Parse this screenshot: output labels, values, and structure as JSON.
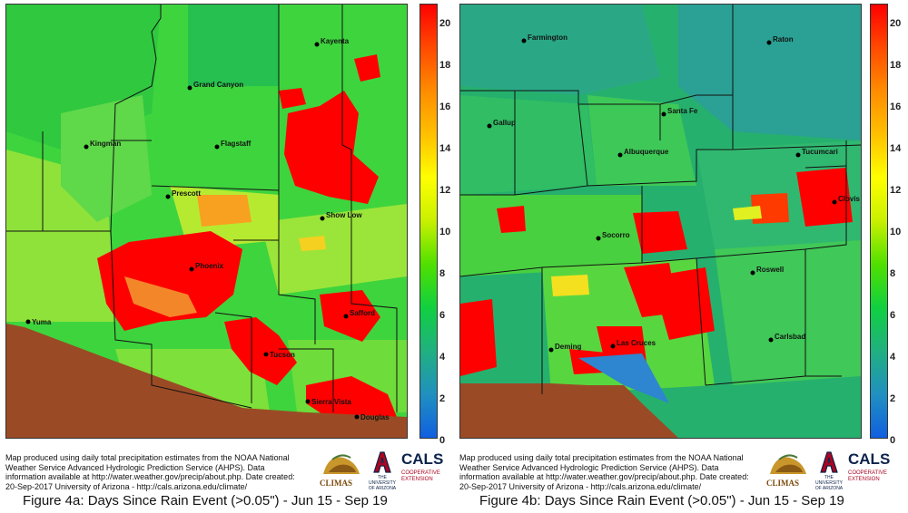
{
  "colorbar": {
    "ticks": [
      "20",
      "18",
      "16",
      "14",
      "12",
      "10",
      "8",
      "6",
      "4",
      "2",
      "0"
    ],
    "colors_top_to_bottom": [
      "#ff0000",
      "#ff4a00",
      "#ff8c00",
      "#ffc000",
      "#ffff00",
      "#c8f000",
      "#50e000",
      "#10d040",
      "#20b080",
      "#2090c0",
      "#1060e0"
    ]
  },
  "panel_a": {
    "caption": "Figure 4a: Days Since Rain Event (>0.05\") - Jun 15 - Sep 19",
    "note": "Map produced using daily total precipitation estimates from the NOAA National Weather Service Advanced Hydrologic Prediction Service (AHPS). Data information available at http://water.weather.gov/precip/about.php. Date created: 20-Sep-2017 University of Arizona - http://cals.arizona.edu/climate/",
    "cities": [
      "Kayenta",
      "Grand Canyon",
      "Kingman",
      "Flagstaff",
      "Prescott",
      "Show Low",
      "Phoenix",
      "Safford",
      "Yuma",
      "Tucson",
      "Sierra Vista",
      "Douglas"
    ]
  },
  "panel_b": {
    "caption": "Figure 4b: Days Since Rain Event (>0.05\") - Jun 15 - Sep 19",
    "note": "Map produced using daily total precipitation estimates from the NOAA National Weather Service Advanced Hydrologic Prediction Service (AHPS). Data information available at http://water.weather.gov/precip/about.php. Date created: 20-Sep-2017 University of Arizona - http://cals.arizona.edu/climate/",
    "cities": [
      "Farmington",
      "Raton",
      "Gallup",
      "Santa Fe",
      "Albuquerque",
      "Tucumcari",
      "Clovis",
      "Socorro",
      "Roswell",
      "Carlsbad",
      "Deming",
      "Las Cruces"
    ]
  },
  "logos": {
    "climas": "CLIMAS",
    "ua_line1": "THE UNIVERSITY",
    "ua_line2": "OF ARIZONA",
    "cals": "CALS",
    "cals_sub1": "COOPERATIVE",
    "cals_sub2": "EXTENSION"
  }
}
